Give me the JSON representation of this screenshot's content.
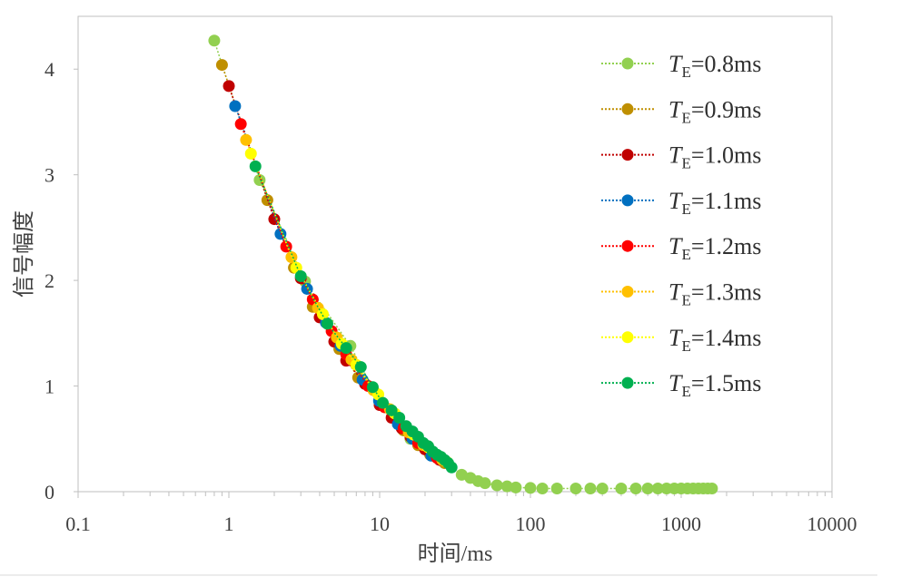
{
  "chart_data": {
    "type": "scatter",
    "xscale": "log",
    "xlim": [
      0.1,
      10000
    ],
    "ylim": [
      0,
      4.5
    ],
    "x_ticks": [
      "0.1",
      "1",
      "10",
      "100",
      "1000",
      "10000"
    ],
    "y_ticks": [
      "0",
      "1",
      "2",
      "3",
      "4"
    ],
    "xlabel": "时间/ms",
    "ylabel": "信号幅度",
    "grid": false,
    "legend_position": "top-right",
    "series": [
      {
        "name": "T_E=0.8ms",
        "symbol": "T",
        "subscript": "E",
        "value": "=0.8ms",
        "color": "#92d050",
        "x": [
          0.8,
          1.6,
          3.2,
          6.4,
          10,
          16,
          25,
          35,
          40,
          45,
          50,
          60,
          70,
          80,
          100,
          120,
          150,
          200,
          250,
          300,
          400,
          500,
          600,
          700,
          800,
          900,
          1000,
          1100,
          1200,
          1300,
          1400,
          1500,
          1600
        ],
        "y": [
          4.27,
          2.95,
          1.99,
          1.38,
          0.85,
          0.5,
          0.33,
          0.16,
          0.13,
          0.1,
          0.08,
          0.06,
          0.05,
          0.04,
          0.035,
          0.03,
          0.03,
          0.03,
          0.03,
          0.03,
          0.03,
          0.03,
          0.03,
          0.03,
          0.03,
          0.03,
          0.03,
          0.03,
          0.03,
          0.03,
          0.03,
          0.03,
          0.03
        ]
      },
      {
        "name": "T_E=0.9ms",
        "symbol": "T",
        "subscript": "E",
        "value": "=0.9ms",
        "color": "#bf8f00",
        "x": [
          0.9,
          1.8,
          2.7,
          3.6,
          5.4,
          7.2,
          10.8,
          14.4,
          18,
          21.6,
          27
        ],
        "y": [
          4.04,
          2.76,
          2.12,
          1.75,
          1.35,
          1.08,
          0.8,
          0.58,
          0.44,
          0.35,
          0.27
        ]
      },
      {
        "name": "T_E=1.0ms",
        "symbol": "T",
        "subscript": "E",
        "value": "=1.0ms",
        "color": "#c00000",
        "x": [
          1.0,
          2.0,
          3.0,
          4.0,
          5.0,
          6.0,
          8.0,
          10,
          12,
          14,
          16,
          20,
          25
        ],
        "y": [
          3.84,
          2.58,
          2.02,
          1.65,
          1.42,
          1.24,
          1.02,
          0.82,
          0.7,
          0.6,
          0.52,
          0.4,
          0.3
        ]
      },
      {
        "name": "T_E=1.1ms",
        "symbol": "T",
        "subscript": "E",
        "value": "=1.1ms",
        "color": "#0070c0",
        "x": [
          1.1,
          2.2,
          3.3,
          4.4,
          5.5,
          7.7,
          9.9,
          13.2,
          16.5,
          22
        ],
        "y": [
          3.65,
          2.44,
          1.92,
          1.6,
          1.38,
          1.06,
          0.86,
          0.64,
          0.5,
          0.34
        ]
      },
      {
        "name": "T_E=1.2ms",
        "symbol": "T",
        "subscript": "E",
        "value": "=1.2ms",
        "color": "#ff0000",
        "x": [
          1.2,
          2.4,
          3.6,
          4.8,
          6.0,
          8.4,
          10.8,
          14.4,
          18,
          24
        ],
        "y": [
          3.48,
          2.32,
          1.82,
          1.52,
          1.3,
          1.0,
          0.8,
          0.6,
          0.46,
          0.32
        ]
      },
      {
        "name": "T_E=1.3ms",
        "symbol": "T",
        "subscript": "E",
        "value": "=1.3ms",
        "color": "#ffc000",
        "x": [
          1.3,
          2.6,
          3.9,
          5.2,
          6.5,
          9.1,
          11.7,
          15.6,
          19.5,
          26
        ],
        "y": [
          3.33,
          2.22,
          1.74,
          1.46,
          1.25,
          0.96,
          0.78,
          0.56,
          0.44,
          0.3
        ]
      },
      {
        "name": "T_E=1.4ms",
        "symbol": "T",
        "subscript": "E",
        "value": "=1.4ms",
        "color": "#ffff00",
        "x": [
          1.4,
          2.8,
          4.2,
          5.6,
          7.0,
          9.8,
          12.6,
          16.8,
          21,
          28
        ],
        "y": [
          3.2,
          2.12,
          1.68,
          1.4,
          1.2,
          0.92,
          0.74,
          0.54,
          0.42,
          0.28
        ]
      },
      {
        "name": "T_E=1.5ms",
        "symbol": "T",
        "subscript": "E",
        "value": "=1.5ms",
        "color": "#00b050",
        "x": [
          1.5,
          3.0,
          4.5,
          6.0,
          7.5,
          9.0,
          10.5,
          12,
          13.5,
          15,
          16.5,
          18,
          19.5,
          21,
          22.5,
          24,
          25.5,
          27,
          28.5,
          30
        ],
        "y": [
          3.08,
          2.04,
          1.59,
          1.36,
          1.18,
          0.99,
          0.84,
          0.77,
          0.7,
          0.62,
          0.57,
          0.52,
          0.46,
          0.43,
          0.38,
          0.35,
          0.33,
          0.3,
          0.27,
          0.23
        ]
      }
    ]
  }
}
